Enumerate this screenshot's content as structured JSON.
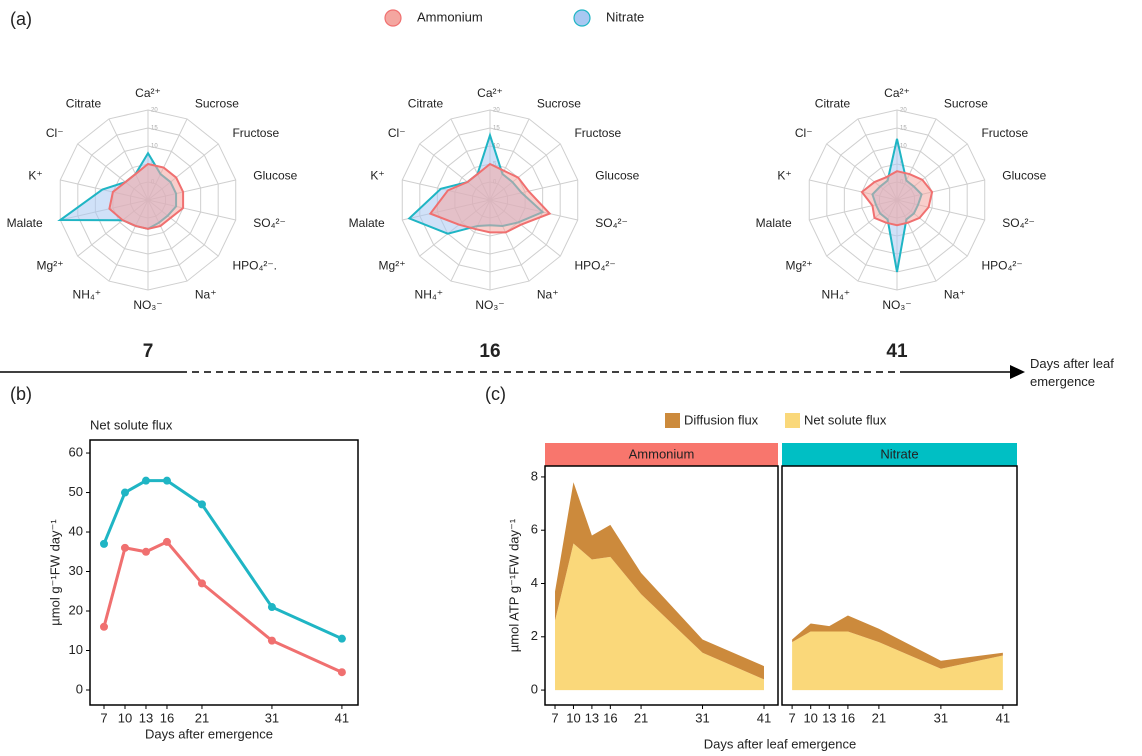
{
  "panel_labels": [
    "(a)",
    "(b)",
    "(c)"
  ],
  "timeline_label": "Days after leaf emergence",
  "chart_data": [
    {
      "type": "radar",
      "title": "7",
      "categories": [
        "Ca²⁺",
        "Sucrose",
        "Fructose",
        "Glucose",
        "SO₄²⁻",
        "HPO₄²⁻.",
        "Na⁺",
        "NO₃⁻",
        "NH₄⁺",
        "Mg²⁺",
        "Malate",
        "K⁺",
        "Cl⁻",
        "Citrate"
      ],
      "rlim": [
        -5,
        20
      ],
      "rticks": [
        0,
        5,
        10,
        15,
        20
      ],
      "series": [
        {
          "name": "Ammonium",
          "color": "#f07070",
          "fill": "#f4a6a0",
          "values": [
            5,
            5,
            5,
            5,
            5,
            3,
            3,
            3,
            3,
            4,
            6,
            5,
            3,
            3
          ]
        },
        {
          "name": "Nitrate",
          "color": "#1fb5c4",
          "fill": "#a9c8f2",
          "values": [
            8,
            3,
            3,
            3,
            3,
            2,
            2,
            3,
            3,
            4,
            20,
            8,
            3,
            3
          ]
        }
      ]
    },
    {
      "type": "radar",
      "title": "16",
      "categories": [
        "Ca²⁺",
        "Sucrose",
        "Fructose",
        "Glucose",
        "SO₄²⁻",
        "HPO₄²⁻",
        "Na⁺",
        "NO₃⁻",
        "NH₄⁺",
        "Mg²⁺",
        "Malate",
        "K⁺",
        "Cl⁻",
        "Citrate"
      ],
      "rlim": [
        -5,
        20
      ],
      "rticks": [
        0,
        5,
        10,
        15,
        20
      ],
      "series": [
        {
          "name": "Ammonium",
          "color": "#f07070",
          "fill": "#f4a6a0",
          "values": [
            5,
            4,
            5,
            6,
            12,
            6,
            5,
            4,
            4,
            6,
            12,
            7,
            3,
            3
          ]
        },
        {
          "name": "Nitrate",
          "color": "#1fb5c4",
          "fill": "#a9c8f2",
          "values": [
            13,
            3,
            3,
            4,
            10,
            5,
            3,
            2,
            3,
            10,
            18,
            9,
            3,
            3
          ]
        }
      ]
    },
    {
      "type": "radar",
      "title": "41",
      "categories": [
        "Ca²⁺",
        "Sucrose",
        "Fructose",
        "Glucose",
        "SO₄²⁻",
        "HPO₄²⁻",
        "Na⁺",
        "NO₃⁻",
        "NH₄⁺",
        "Mg²⁺",
        "Malate",
        "K⁺",
        "Cl⁻",
        "Citrate"
      ],
      "rlim": [
        -5,
        20
      ],
      "rticks": [
        0,
        5,
        10,
        15,
        20
      ],
      "series": [
        {
          "name": "Ammonium",
          "color": "#f07070",
          "fill": "#f4a6a0",
          "values": [
            3,
            3,
            4,
            5,
            4,
            3,
            2,
            2,
            2,
            3,
            2,
            5,
            3,
            2
          ]
        },
        {
          "name": "Nitrate",
          "color": "#1fb5c4",
          "fill": "#a9c8f2",
          "values": [
            12,
            1,
            1,
            2,
            1,
            1,
            1,
            15,
            1,
            1,
            1,
            2,
            1,
            1
          ]
        }
      ]
    },
    {
      "type": "line",
      "title": "Net solute flux",
      "xlabel": "Days after emergence",
      "ylabel": "µmol g⁻¹FW day⁻¹",
      "x": [
        7,
        10,
        13,
        16,
        21,
        31,
        41
      ],
      "xlim": [
        5,
        43.3
      ],
      "xticks": [
        7,
        10,
        13,
        16,
        21,
        31,
        41
      ],
      "ylim": [
        -3.8,
        63.3
      ],
      "yticks": [
        0,
        10,
        20,
        30,
        40,
        50,
        60
      ],
      "series": [
        {
          "color": "#1fb5c4",
          "values": [
            37,
            50,
            53,
            53,
            47,
            21,
            13
          ]
        },
        {
          "color": "#f07070",
          "values": [
            16,
            36,
            35,
            37.5,
            27,
            12.5,
            4.5
          ]
        }
      ]
    },
    {
      "type": "area",
      "title": "Ammonium",
      "strip_color": "#f8766d",
      "xlabel": "Days after leaf emergence",
      "ylabel": "µmol  ATP g⁻¹FW day⁻¹",
      "x": [
        7,
        10,
        13,
        16,
        21,
        31,
        41
      ],
      "xlim": [
        5.37,
        43.28
      ],
      "xticks": [
        7,
        10,
        13,
        16,
        21,
        31,
        41
      ],
      "ylim": [
        -0.56,
        8.41
      ],
      "yticks": [
        0,
        2,
        4,
        6,
        8
      ],
      "series": [
        {
          "name": "Diffusion flux",
          "color": "#cc8a3c",
          "values": [
            1.1,
            2.3,
            0.9,
            1.2,
            0.8,
            0.5,
            0.5
          ]
        },
        {
          "name": "Net solute flux",
          "color": "#fad87a",
          "values": [
            2.6,
            5.5,
            4.9,
            5.0,
            3.6,
            1.4,
            0.4
          ]
        }
      ]
    },
    {
      "type": "area",
      "title": "Nitrate",
      "strip_color": "#00bfc4",
      "x": [
        7,
        10,
        13,
        16,
        21,
        31,
        41
      ],
      "xlim": [
        5.37,
        43.28
      ],
      "xticks": [
        7,
        10,
        13,
        16,
        21,
        31,
        41
      ],
      "ylim": [
        -0.56,
        8.41
      ],
      "series": [
        {
          "color": "#cc8a3c",
          "values": [
            0.1,
            0.3,
            0.2,
            0.6,
            0.5,
            0.3,
            0.1
          ]
        },
        {
          "color": "#fad87a",
          "values": [
            1.8,
            2.2,
            2.2,
            2.2,
            1.8,
            0.8,
            1.3
          ]
        }
      ]
    }
  ]
}
